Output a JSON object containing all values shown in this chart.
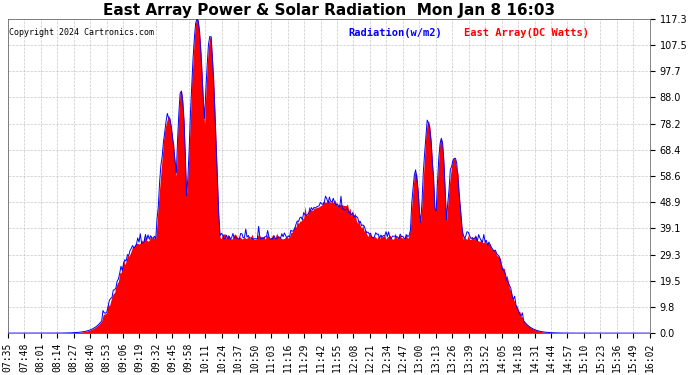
{
  "title": "East Array Power & Solar Radiation  Mon Jan 8 16:03",
  "copyright": "Copyright 2024 Cartronics.com",
  "legend_radiation": "Radiation(w/m2)",
  "legend_east": "East Array(DC Watts)",
  "legend_radiation_color": "blue",
  "legend_east_color": "red",
  "yticks": [
    0.0,
    9.8,
    19.5,
    29.3,
    39.1,
    48.9,
    58.6,
    68.4,
    78.2,
    88.0,
    97.7,
    107.5,
    117.3
  ],
  "ymax": 117.3,
  "ymin": 0.0,
  "background_color": "#ffffff",
  "plot_bg_color": "#ffffff",
  "grid_color": "#bbbbbb",
  "fill_color": "red",
  "line_color": "blue",
  "title_fontsize": 11,
  "tick_fontsize": 7
}
